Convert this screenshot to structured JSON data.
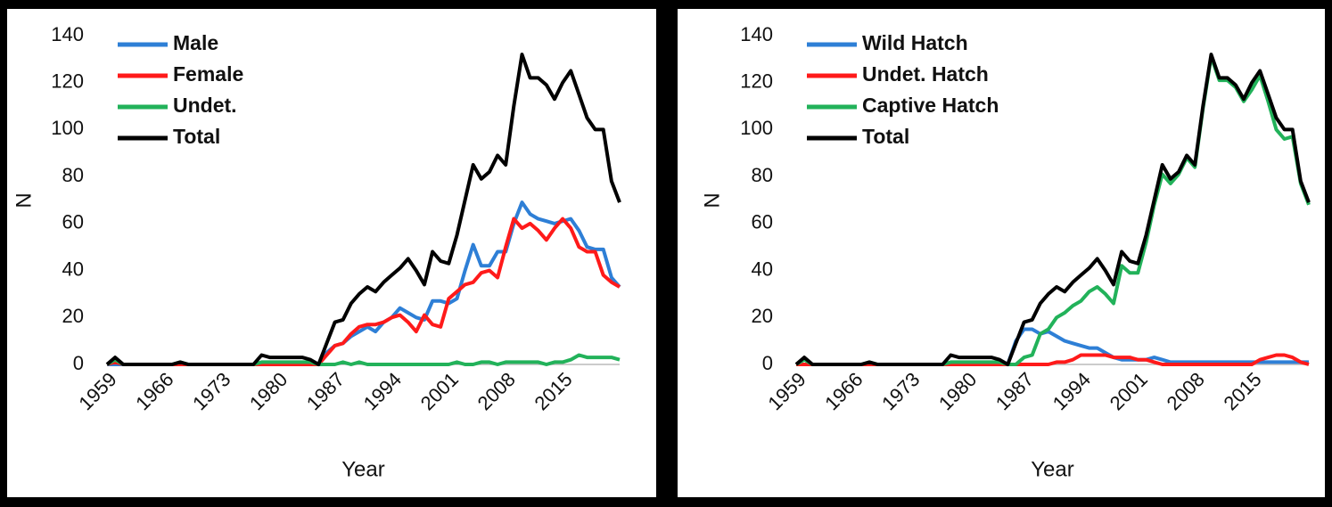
{
  "chart_data": [
    {
      "type": "line",
      "x": [
        1959,
        1960,
        1961,
        1962,
        1963,
        1964,
        1965,
        1966,
        1967,
        1968,
        1969,
        1970,
        1971,
        1972,
        1973,
        1974,
        1975,
        1976,
        1977,
        1978,
        1979,
        1980,
        1981,
        1982,
        1983,
        1984,
        1985,
        1986,
        1987,
        1988,
        1989,
        1990,
        1991,
        1992,
        1993,
        1994,
        1995,
        1996,
        1997,
        1998,
        1999,
        2000,
        2001,
        2002,
        2003,
        2004,
        2005,
        2006,
        2007,
        2008,
        2009,
        2010,
        2011,
        2012,
        2013,
        2014,
        2015,
        2016,
        2017,
        2018,
        2019,
        2020,
        2021,
        2022
      ],
      "xlim": [
        1959,
        2022
      ],
      "xticks": [
        1959,
        1966,
        1973,
        1980,
        1987,
        1994,
        2001,
        2008,
        2015
      ],
      "ylim": [
        0,
        140
      ],
      "yticks": [
        0,
        20,
        40,
        60,
        80,
        100,
        120,
        140
      ],
      "x_label": "Year",
      "y_label": "N",
      "legend": "top-left",
      "series": [
        {
          "name": "Male",
          "color": "#2e7fd6",
          "values": [
            0,
            0,
            0,
            0,
            0,
            0,
            0,
            0,
            0,
            0,
            0,
            0,
            0,
            0,
            0,
            0,
            0,
            0,
            0,
            0,
            0,
            0,
            0,
            0,
            0,
            0,
            0,
            5,
            8,
            9,
            12,
            14,
            16,
            14,
            18,
            20,
            24,
            22,
            20,
            19,
            27,
            27,
            26,
            28,
            40,
            51,
            42,
            42,
            48,
            48,
            60,
            69,
            64,
            62,
            61,
            60,
            61,
            62,
            57,
            50,
            49,
            49,
            37,
            33
          ]
        },
        {
          "name": "Female",
          "color": "#ff1a1a",
          "values": [
            0,
            1,
            0,
            0,
            0,
            0,
            0,
            0,
            0,
            0,
            0,
            0,
            0,
            0,
            0,
            0,
            0,
            0,
            0,
            0,
            0,
            0,
            0,
            0,
            0,
            0,
            0,
            4,
            8,
            9,
            13,
            16,
            17,
            17,
            18,
            20,
            21,
            18,
            14,
            21,
            17,
            16,
            28,
            31,
            34,
            35,
            39,
            40,
            37,
            50,
            62,
            58,
            60,
            57,
            53,
            58,
            62,
            58,
            50,
            48,
            48,
            38,
            35,
            33
          ]
        },
        {
          "name": "Undet.",
          "color": "#22b25a",
          "values": [
            0,
            2,
            0,
            0,
            0,
            0,
            0,
            0,
            0,
            1,
            0,
            0,
            0,
            0,
            0,
            0,
            0,
            0,
            0,
            1,
            1,
            1,
            1,
            1,
            1,
            1,
            0,
            0,
            0,
            1,
            0,
            1,
            0,
            0,
            0,
            0,
            0,
            0,
            0,
            0,
            0,
            0,
            0,
            1,
            0,
            0,
            1,
            1,
            0,
            1,
            1,
            1,
            1,
            1,
            0,
            1,
            1,
            2,
            4,
            3,
            3,
            3,
            3,
            2
          ]
        },
        {
          "name": "Total",
          "color": "#000000",
          "values": [
            0,
            3,
            0,
            0,
            0,
            0,
            0,
            0,
            0,
            1,
            0,
            0,
            0,
            0,
            0,
            0,
            0,
            0,
            0,
            4,
            3,
            3,
            3,
            3,
            3,
            2,
            0,
            9,
            18,
            19,
            26,
            30,
            33,
            31,
            35,
            38,
            41,
            45,
            40,
            34,
            48,
            44,
            43,
            55,
            70,
            85,
            79,
            82,
            89,
            85,
            110,
            132,
            122,
            122,
            119,
            113,
            120,
            125,
            115,
            105,
            100,
            100,
            78,
            69
          ]
        }
      ]
    },
    {
      "type": "line",
      "x": [
        1959,
        1960,
        1961,
        1962,
        1963,
        1964,
        1965,
        1966,
        1967,
        1968,
        1969,
        1970,
        1971,
        1972,
        1973,
        1974,
        1975,
        1976,
        1977,
        1978,
        1979,
        1980,
        1981,
        1982,
        1983,
        1984,
        1985,
        1986,
        1987,
        1988,
        1989,
        1990,
        1991,
        1992,
        1993,
        1994,
        1995,
        1996,
        1997,
        1998,
        1999,
        2000,
        2001,
        2002,
        2003,
        2004,
        2005,
        2006,
        2007,
        2008,
        2009,
        2010,
        2011,
        2012,
        2013,
        2014,
        2015,
        2016,
        2017,
        2018,
        2019,
        2020,
        2021,
        2022
      ],
      "xlim": [
        1959,
        2022
      ],
      "xticks": [
        1959,
        1966,
        1973,
        1980,
        1987,
        1994,
        2001,
        2008,
        2015
      ],
      "ylim": [
        0,
        140
      ],
      "yticks": [
        0,
        20,
        40,
        60,
        80,
        100,
        120,
        140
      ],
      "x_label": "Year",
      "y_label": "N",
      "legend": "top-left",
      "series": [
        {
          "name": "Wild Hatch",
          "color": "#2e7fd6",
          "values": [
            0,
            0,
            0,
            0,
            0,
            0,
            0,
            0,
            0,
            0,
            0,
            0,
            0,
            0,
            0,
            0,
            0,
            0,
            0,
            0,
            0,
            0,
            0,
            0,
            0,
            0,
            0,
            10,
            15,
            15,
            13,
            14,
            12,
            10,
            9,
            8,
            7,
            7,
            5,
            3,
            2,
            2,
            2,
            2,
            3,
            2,
            1,
            1,
            1,
            1,
            1,
            1,
            1,
            1,
            1,
            1,
            1,
            1,
            1,
            1,
            1,
            1,
            1,
            1
          ]
        },
        {
          "name": "Undet. Hatch",
          "color": "#ff1a1a",
          "values": [
            0,
            0,
            0,
            0,
            0,
            0,
            0,
            0,
            0,
            0,
            0,
            0,
            0,
            0,
            0,
            0,
            0,
            0,
            0,
            0,
            0,
            0,
            0,
            0,
            0,
            0,
            0,
            0,
            0,
            0,
            0,
            0,
            1,
            1,
            2,
            4,
            4,
            4,
            4,
            3,
            3,
            3,
            2,
            2,
            1,
            0,
            0,
            0,
            0,
            0,
            0,
            0,
            0,
            0,
            0,
            0,
            0,
            2,
            3,
            4,
            4,
            3,
            1,
            0
          ]
        },
        {
          "name": "Captive Hatch",
          "color": "#22b25a",
          "values": [
            0,
            2,
            0,
            0,
            0,
            0,
            0,
            0,
            0,
            1,
            0,
            0,
            0,
            0,
            0,
            0,
            0,
            0,
            0,
            1,
            1,
            1,
            1,
            1,
            1,
            1,
            0,
            0,
            3,
            4,
            13,
            15,
            20,
            22,
            25,
            27,
            31,
            33,
            30,
            26,
            42,
            39,
            39,
            52,
            68,
            81,
            77,
            81,
            88,
            84,
            109,
            131,
            121,
            121,
            118,
            112,
            117,
            123,
            112,
            100,
            96,
            97,
            77,
            68
          ]
        },
        {
          "name": "Total",
          "color": "#000000",
          "values": [
            0,
            3,
            0,
            0,
            0,
            0,
            0,
            0,
            0,
            1,
            0,
            0,
            0,
            0,
            0,
            0,
            0,
            0,
            0,
            4,
            3,
            3,
            3,
            3,
            3,
            2,
            0,
            9,
            18,
            19,
            26,
            30,
            33,
            31,
            35,
            38,
            41,
            45,
            40,
            34,
            48,
            44,
            43,
            55,
            70,
            85,
            79,
            82,
            89,
            85,
            110,
            132,
            122,
            122,
            119,
            113,
            120,
            125,
            115,
            105,
            100,
            100,
            78,
            69
          ]
        }
      ]
    }
  ]
}
